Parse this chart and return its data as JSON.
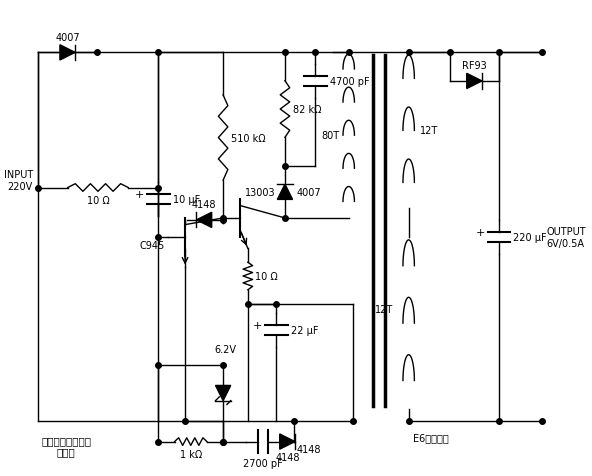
{
  "bg": "#ffffff",
  "lw": 1.0,
  "dot_ms": 4,
  "labels": {
    "input": "INPUT\n220V",
    "res10_input": "10 Ω",
    "cap10uF": "10 μF",
    "res510k": "510 kΩ",
    "res82k": "82 kΩ",
    "cap4700pF": "4700 pF",
    "diode4007_top": "4007",
    "diode4007_mid": "4007",
    "trans13003": "13003",
    "trans_C945": "C945",
    "diode4148_mid": "4148",
    "res10_mid": "10 Ω",
    "cap22uF": "22 μF",
    "zener62": "6.2V",
    "res1k": "1 kΩ",
    "cap2700pF": "2700 pF",
    "diode4148_bot": "4148",
    "prim80T": "80T",
    "sec12T_top": "12T",
    "sec12T_bot": "12T",
    "diodeRF93": "RF93",
    "cap220uF": "220 μF",
    "output": "OUTPUT\n6V/0.5A",
    "title": "手机充电器用电源\n变换器",
    "core": "E6高频磁芯"
  }
}
